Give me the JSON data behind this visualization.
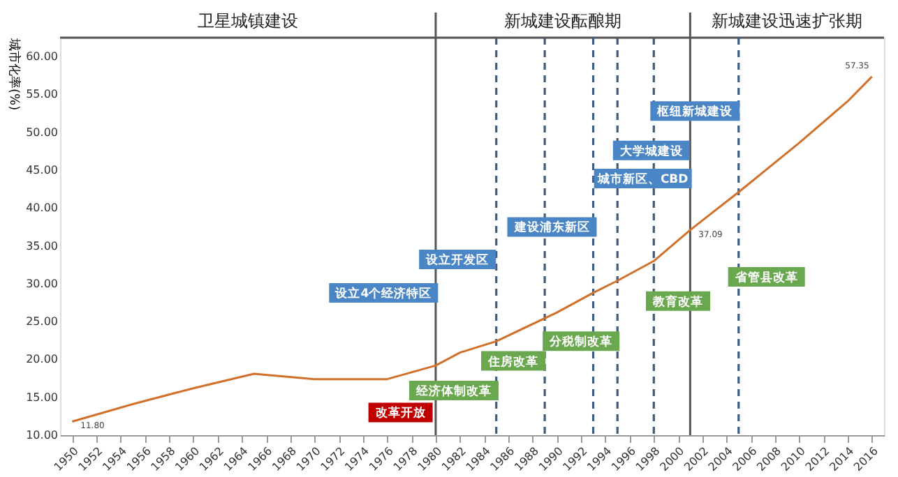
{
  "chart_data": {
    "type": "line",
    "ylabel": "城市化率(%)",
    "x": [
      1950,
      1955,
      1960,
      1965,
      1970,
      1976,
      1980,
      1982,
      1985,
      1990,
      1993,
      1995,
      1998,
      2001,
      2005,
      2010,
      2014,
      2016
    ],
    "series": [
      {
        "color": "#d0702a",
        "values": [
          11.8,
          14.1,
          16.2,
          18.1,
          17.4,
          17.4,
          19.2,
          20.9,
          22.4,
          26.2,
          28.8,
          30.4,
          33.0,
          37.09,
          42.1,
          48.6,
          54.1,
          57.35
        ],
        "value_labels": [
          "11.80",
          null,
          null,
          null,
          null,
          null,
          null,
          null,
          null,
          null,
          null,
          null,
          null,
          "37.09",
          null,
          null,
          null,
          "57.35"
        ]
      }
    ],
    "xlim": [
      1949,
      2017
    ],
    "xticks": [
      1950,
      1952,
      1954,
      1956,
      1958,
      1960,
      1962,
      1964,
      1966,
      1968,
      1970,
      1972,
      1974,
      1976,
      1978,
      1980,
      1982,
      1984,
      1986,
      1988,
      1990,
      1992,
      1994,
      1996,
      1998,
      2000,
      2002,
      2004,
      2006,
      2008,
      2010,
      2012,
      2014,
      2016
    ],
    "ylim": [
      10,
      62.5
    ],
    "yticks": [
      {
        "value": 10,
        "label": "10.00"
      },
      {
        "value": 15,
        "label": "15.00"
      },
      {
        "value": 20,
        "label": "20.00"
      },
      {
        "value": 25,
        "label": "25.00"
      },
      {
        "value": 30,
        "label": "30.00"
      },
      {
        "value": 35,
        "label": "35.00"
      },
      {
        "value": 40,
        "label": "40.00"
      },
      {
        "value": 45,
        "label": "45.00"
      },
      {
        "value": 50,
        "label": "50.00"
      },
      {
        "value": 55,
        "label": "55.00"
      },
      {
        "value": 60,
        "label": "60.00"
      }
    ],
    "grid": false,
    "ref_lines": [
      {
        "axis": "x",
        "value": 1980,
        "color": "#555555",
        "line_style": "solid"
      },
      {
        "axis": "x",
        "value": 2001,
        "color": "#555555",
        "line_style": "solid"
      },
      {
        "axis": "x",
        "value": 1985,
        "color": "#3d5c80",
        "line_style": "dashed"
      },
      {
        "axis": "x",
        "value": 1989,
        "color": "#3d5c80",
        "line_style": "dashed"
      },
      {
        "axis": "x",
        "value": 1993,
        "color": "#3d5c80",
        "line_style": "dashed"
      },
      {
        "axis": "x",
        "value": 1995,
        "color": "#3d5c80",
        "line_style": "dashed"
      },
      {
        "axis": "x",
        "value": 1998,
        "color": "#3d5c80",
        "line_style": "dashed"
      },
      {
        "axis": "x",
        "value": 2005,
        "color": "#3d5c80",
        "line_style": "dashed"
      }
    ],
    "annotations": [
      "卫星城镇建设",
      "新城建设酝酿期",
      "新城建设迅速扩张期",
      "设立4个经济特区",
      "设立开发区",
      "建设浦东新区",
      "城市新区、CBD",
      "大学城建设",
      "枢纽新城建设",
      "经济体制改革",
      "住房改革",
      "分税制改革",
      "教育改革",
      "省管县改革",
      "改革开放"
    ]
  }
}
